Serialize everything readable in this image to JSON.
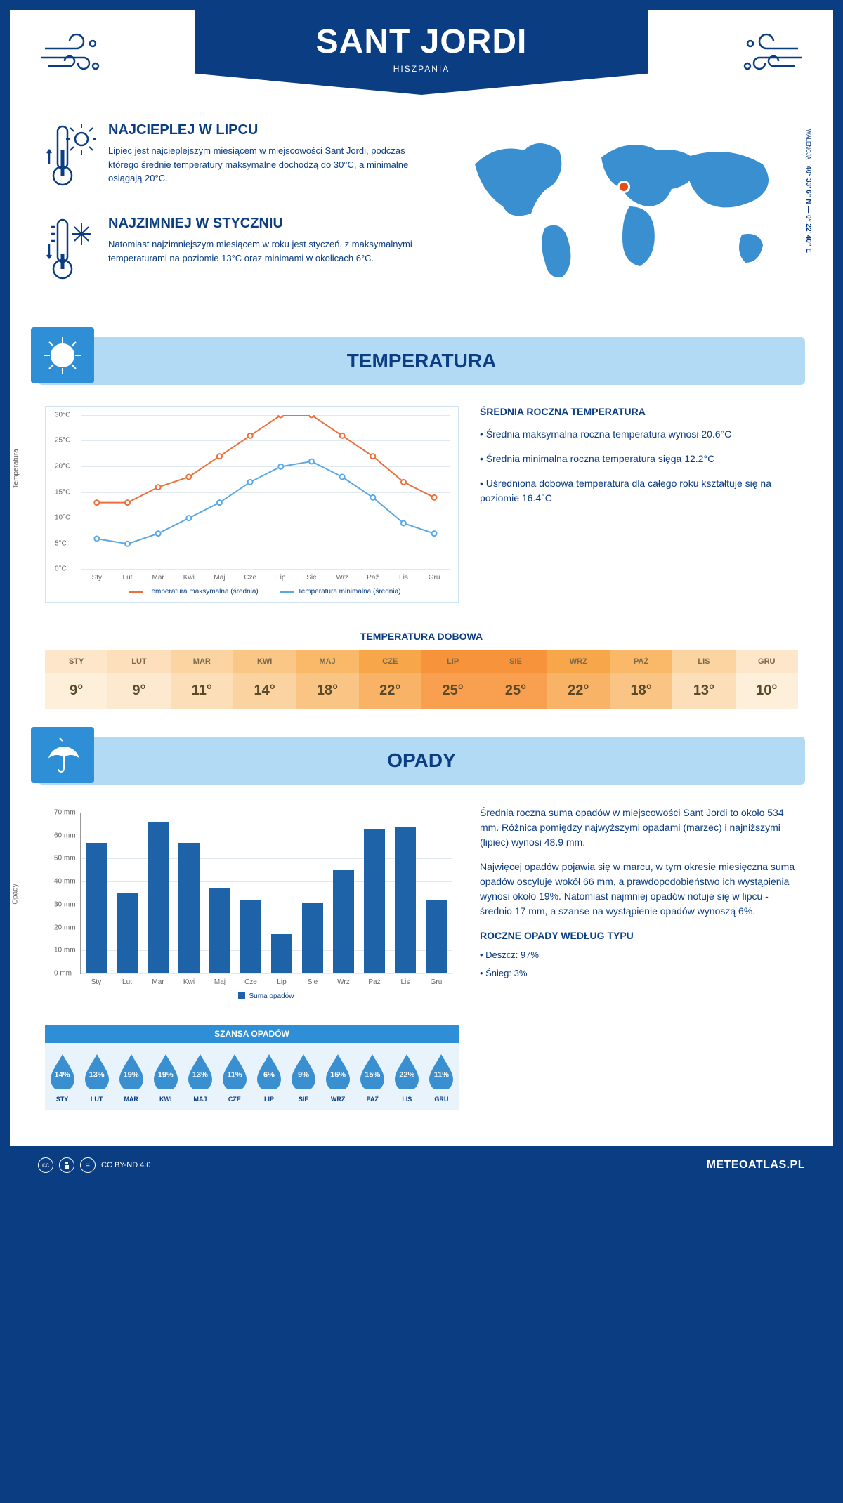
{
  "header": {
    "title": "SANT JORDI",
    "subtitle": "HISZPANIA"
  },
  "coords": {
    "region": "WALENCJA",
    "text": "40° 33' 6\" N — 0° 22' 40\" E"
  },
  "info": {
    "hot": {
      "title": "NAJCIEPLEJ W LIPCU",
      "text": "Lipiec jest najcieplejszym miesiącem w miejscowości Sant Jordi, podczas którego średnie temperatury maksymalne dochodzą do 30°C, a minimalne osiągają 20°C."
    },
    "cold": {
      "title": "NAJZIMNIEJ W STYCZNIU",
      "text": "Natomiast najzimniejszym miesiącem w roku jest styczeń, z maksymalnymi temperaturami na poziomie 13°C oraz minimami w okolicach 6°C."
    }
  },
  "sections": {
    "temperature_title": "TEMPERATURA",
    "precip_title": "OPADY"
  },
  "temp_chart": {
    "type": "line",
    "months": [
      "Sty",
      "Lut",
      "Mar",
      "Kwi",
      "Maj",
      "Cze",
      "Lip",
      "Sie",
      "Wrz",
      "Paź",
      "Lis",
      "Gru"
    ],
    "max_series": [
      13,
      13,
      16,
      18,
      22,
      26,
      30,
      30,
      26,
      22,
      17,
      14
    ],
    "min_series": [
      6,
      5,
      7,
      10,
      13,
      17,
      20,
      21,
      18,
      14,
      9,
      7
    ],
    "ylim": [
      0,
      30
    ],
    "ytick_step": 5,
    "y_unit": "°C",
    "axis_label": "Temperatura",
    "line_max_color": "#ed6f3a",
    "line_min_color": "#5aa9e6",
    "grid_color": "#e0e8f0",
    "background_color": "#ffffff",
    "legend_max": "Temperatura maksymalna (średnia)",
    "legend_min": "Temperatura minimalna (średnia)"
  },
  "temp_text": {
    "title": "ŚREDNIA ROCZNA TEMPERATURA",
    "b1": "• Średnia maksymalna roczna temperatura wynosi 20.6°C",
    "b2": "• Średnia minimalna roczna temperatura sięga 12.2°C",
    "b3": "• Uśredniona dobowa temperatura dla całego roku kształtuje się na poziomie 16.4°C"
  },
  "daily": {
    "title": "TEMPERATURA DOBOWA",
    "months": [
      "STY",
      "LUT",
      "MAR",
      "KWI",
      "MAJ",
      "CZE",
      "LIP",
      "SIE",
      "WRZ",
      "PAŹ",
      "LIS",
      "GRU"
    ],
    "values": [
      "9°",
      "9°",
      "11°",
      "14°",
      "18°",
      "22°",
      "25°",
      "25°",
      "22°",
      "18°",
      "13°",
      "10°"
    ],
    "head_colors": [
      "#fde6c9",
      "#fde0bb",
      "#fbd4a2",
      "#fac787",
      "#f9b968",
      "#f8a64a",
      "#f7933a",
      "#f7933a",
      "#f8a64a",
      "#f9b968",
      "#fbd4a2",
      "#fde6c9"
    ],
    "body_colors": [
      "#feefdb",
      "#fde9cf",
      "#fcdfb9",
      "#fbd3a0",
      "#fac584",
      "#f9b366",
      "#f8a04f",
      "#f8a04f",
      "#f9b366",
      "#fac584",
      "#fcdfb9",
      "#feefdb"
    ]
  },
  "precip_chart": {
    "type": "bar",
    "months": [
      "Sty",
      "Lut",
      "Mar",
      "Kwi",
      "Maj",
      "Cze",
      "Lip",
      "Sie",
      "Wrz",
      "Paź",
      "Lis",
      "Gru"
    ],
    "values": [
      57,
      35,
      66,
      57,
      37,
      32,
      17,
      31,
      45,
      63,
      64,
      32
    ],
    "ylim": [
      0,
      70
    ],
    "ytick_step": 10,
    "y_unit": " mm",
    "axis_label": "Opady",
    "bar_color": "#1e63a8",
    "grid_color": "#e0e8f0",
    "legend": "Suma opadów"
  },
  "precip_text": {
    "p1": "Średnia roczna suma opadów w miejscowości Sant Jordi to około 534 mm. Różnica pomiędzy najwyższymi opadami (marzec) i najniższymi (lipiec) wynosi 48.9 mm.",
    "p2": "Najwięcej opadów pojawia się w marcu, w tym okresie miesięczna suma opadów oscyluje wokół 66 mm, a prawdopodobieństwo ich wystąpienia wynosi około 19%. Natomiast najmniej opadów notuje się w lipcu - średnio 17 mm, a szanse na wystąpienie opadów wynoszą 6%."
  },
  "chance": {
    "title": "SZANSA OPADÓW",
    "months": [
      "STY",
      "LUT",
      "MAR",
      "KWI",
      "MAJ",
      "CZE",
      "LIP",
      "SIE",
      "WRZ",
      "PAŹ",
      "LIS",
      "GRU"
    ],
    "values": [
      "14%",
      "13%",
      "19%",
      "19%",
      "13%",
      "11%",
      "6%",
      "9%",
      "16%",
      "15%",
      "22%",
      "11%"
    ],
    "drop_color": "#3a8fd0",
    "bg_color": "#e8f3fc"
  },
  "type": {
    "title": "ROCZNE OPADY WEDŁUG TYPU",
    "rain": "• Deszcz: 97%",
    "snow": "• Śnieg: 3%"
  },
  "footer": {
    "license": "CC BY-ND 4.0",
    "site": "METEOATLAS.PL"
  },
  "colors": {
    "primary": "#0a3d82",
    "light_blue": "#b3daf5",
    "mid_blue": "#2f8fd6",
    "map": "#3a8fd0",
    "marker": "#e84c1a"
  }
}
